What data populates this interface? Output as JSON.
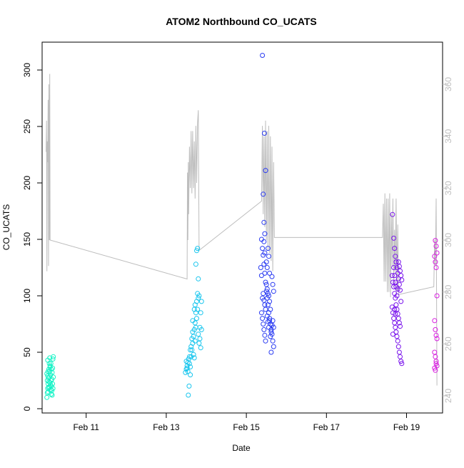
{
  "chart_data": {
    "type": "scatter",
    "title": "ATOM2 Northbound CO_UCATS",
    "xlabel": "Date",
    "ylabel": "CO_UCATS",
    "x_unit": "day of February",
    "xlim": [
      9.9,
      19.9
    ],
    "ylim": [
      0,
      320
    ],
    "y2lim": [
      240,
      368
    ],
    "x_ticks": [
      {
        "value": 11,
        "label": "Feb 11"
      },
      {
        "value": 13,
        "label": "Feb 13"
      },
      {
        "value": 15,
        "label": "Feb 15"
      },
      {
        "value": 17,
        "label": "Feb 17"
      },
      {
        "value": 19,
        "label": "Feb 19"
      }
    ],
    "y_ticks": [
      0,
      50,
      100,
      150,
      200,
      250,
      300
    ],
    "y2_ticks": [
      240,
      260,
      280,
      300,
      320,
      340,
      360
    ],
    "grid": false,
    "legend": "none",
    "colors": {
      "altitude_line": "#bdbdbd",
      "axis": "#000000",
      "secondary_axis": "#bdbdbd",
      "flight1": "#14f3c6",
      "flight2": "#1ac6ee",
      "flight3": "#2b3cf2",
      "flight4": "#7a14ec",
      "flight5": "#d81ee0"
    },
    "series": [
      {
        "color": "#14f3c6",
        "points": [
          [
            10.02,
            10
          ],
          [
            10.03,
            14
          ],
          [
            10.04,
            18
          ],
          [
            10.05,
            22
          ],
          [
            10.06,
            27
          ],
          [
            10.02,
            31
          ],
          [
            10.07,
            35
          ],
          [
            10.08,
            40
          ],
          [
            10.04,
            43
          ],
          [
            10.09,
            45
          ],
          [
            10.1,
            38
          ],
          [
            10.11,
            30
          ],
          [
            10.12,
            25
          ],
          [
            10.13,
            20
          ],
          [
            10.14,
            16
          ],
          [
            10.15,
            12
          ],
          [
            10.05,
            15
          ],
          [
            10.06,
            19
          ],
          [
            10.07,
            24
          ],
          [
            10.08,
            28
          ],
          [
            10.09,
            33
          ],
          [
            10.1,
            37
          ],
          [
            10.11,
            21
          ],
          [
            10.12,
            17
          ],
          [
            10.13,
            13
          ],
          [
            10.14,
            26
          ],
          [
            10.15,
            32
          ],
          [
            10.16,
            36
          ],
          [
            10.17,
            44
          ],
          [
            10.18,
            46
          ],
          [
            10.03,
            25
          ],
          [
            10.04,
            29
          ],
          [
            10.05,
            33
          ],
          [
            10.09,
            19
          ],
          [
            10.1,
            23
          ],
          [
            10.12,
            40
          ],
          [
            10.13,
            35
          ],
          [
            10.16,
            22
          ],
          [
            10.17,
            18
          ],
          [
            10.18,
            28
          ]
        ]
      },
      {
        "color": "#1ac6ee",
        "points": [
          [
            13.48,
            32
          ],
          [
            13.5,
            35
          ],
          [
            13.52,
            38
          ],
          [
            13.54,
            41
          ],
          [
            13.56,
            44
          ],
          [
            13.58,
            40
          ],
          [
            13.6,
            37
          ],
          [
            13.62,
            46
          ],
          [
            13.64,
            52
          ],
          [
            13.66,
            58
          ],
          [
            13.68,
            64
          ],
          [
            13.7,
            70
          ],
          [
            13.72,
            76
          ],
          [
            13.74,
            85
          ],
          [
            13.76,
            95
          ],
          [
            13.78,
            102
          ],
          [
            13.8,
            115
          ],
          [
            13.74,
            128
          ],
          [
            13.76,
            140
          ],
          [
            13.78,
            142
          ],
          [
            13.55,
            12
          ],
          [
            13.57,
            20
          ],
          [
            13.6,
            30
          ],
          [
            13.62,
            55
          ],
          [
            13.64,
            62
          ],
          [
            13.66,
            68
          ],
          [
            13.68,
            48
          ],
          [
            13.7,
            45
          ],
          [
            13.72,
            60
          ],
          [
            13.74,
            72
          ],
          [
            13.76,
            80
          ],
          [
            13.78,
            88
          ],
          [
            13.8,
            66
          ],
          [
            13.82,
            58
          ],
          [
            13.84,
            72
          ],
          [
            13.86,
            85
          ],
          [
            13.88,
            95
          ],
          [
            13.84,
            62
          ],
          [
            13.86,
            54
          ],
          [
            13.88,
            70
          ],
          [
            13.5,
            42
          ],
          [
            13.52,
            36
          ],
          [
            13.54,
            33
          ],
          [
            13.58,
            46
          ],
          [
            13.6,
            52
          ],
          [
            13.7,
            88
          ],
          [
            13.72,
            92
          ],
          [
            13.8,
            98
          ],
          [
            13.82,
            100
          ],
          [
            13.66,
            78
          ]
        ]
      },
      {
        "color": "#2b3cf2",
        "points": [
          [
            15.4,
            313
          ],
          [
            15.45,
            244
          ],
          [
            15.48,
            211
          ],
          [
            15.42,
            190
          ],
          [
            15.44,
            165
          ],
          [
            15.46,
            155
          ],
          [
            15.38,
            150
          ],
          [
            15.4,
            142
          ],
          [
            15.42,
            136
          ],
          [
            15.44,
            128
          ],
          [
            15.46,
            120
          ],
          [
            15.48,
            112
          ],
          [
            15.5,
            104
          ],
          [
            15.52,
            98
          ],
          [
            15.54,
            92
          ],
          [
            15.56,
            85
          ],
          [
            15.58,
            80
          ],
          [
            15.6,
            75
          ],
          [
            15.62,
            70
          ],
          [
            15.64,
            66
          ],
          [
            15.66,
            60
          ],
          [
            15.68,
            55
          ],
          [
            15.62,
            50
          ],
          [
            15.64,
            117
          ],
          [
            15.66,
            110
          ],
          [
            15.68,
            104
          ],
          [
            15.56,
            100
          ],
          [
            15.58,
            95
          ],
          [
            15.6,
            88
          ],
          [
            15.38,
            85
          ],
          [
            15.4,
            80
          ],
          [
            15.42,
            75
          ],
          [
            15.44,
            70
          ],
          [
            15.46,
            65
          ],
          [
            15.48,
            60
          ],
          [
            15.5,
            110
          ],
          [
            15.52,
            106
          ],
          [
            15.54,
            102
          ],
          [
            15.56,
            72
          ],
          [
            15.58,
            78
          ],
          [
            15.6,
            64
          ],
          [
            15.62,
            68
          ],
          [
            15.64,
            74
          ],
          [
            15.66,
            78
          ],
          [
            15.68,
            72
          ],
          [
            15.5,
            130
          ],
          [
            15.52,
            125
          ],
          [
            15.54,
            142
          ],
          [
            15.56,
            135
          ],
          [
            15.58,
            120
          ],
          [
            15.4,
            98
          ],
          [
            15.42,
            102
          ],
          [
            15.44,
            96
          ],
          [
            15.46,
            92
          ],
          [
            15.48,
            88
          ],
          [
            15.52,
            82
          ],
          [
            15.54,
            77
          ],
          [
            15.36,
            125
          ],
          [
            15.38,
            118
          ],
          [
            15.44,
            148
          ],
          [
            15.46,
            138
          ]
        ]
      },
      {
        "color": "#7a14ec",
        "points": [
          [
            18.65,
            172
          ],
          [
            18.68,
            151
          ],
          [
            18.7,
            142
          ],
          [
            18.72,
            135
          ],
          [
            18.74,
            130
          ],
          [
            18.76,
            125
          ],
          [
            18.78,
            120
          ],
          [
            18.8,
            115
          ],
          [
            18.82,
            110
          ],
          [
            18.84,
            105
          ],
          [
            18.86,
            95
          ],
          [
            18.64,
            90
          ],
          [
            18.66,
            85
          ],
          [
            18.68,
            80
          ],
          [
            18.7,
            76
          ],
          [
            18.72,
            72
          ],
          [
            18.74,
            68
          ],
          [
            18.76,
            64
          ],
          [
            18.78,
            60
          ],
          [
            18.8,
            55
          ],
          [
            18.82,
            50
          ],
          [
            18.84,
            46
          ],
          [
            18.86,
            42
          ],
          [
            18.88,
            40
          ],
          [
            18.64,
            118
          ],
          [
            18.66,
            112
          ],
          [
            18.68,
            108
          ],
          [
            18.7,
            102
          ],
          [
            18.72,
            98
          ],
          [
            18.74,
            92
          ],
          [
            18.76,
            88
          ],
          [
            18.78,
            84
          ],
          [
            18.8,
            80
          ],
          [
            18.82,
            76
          ],
          [
            18.84,
            73
          ],
          [
            18.68,
            125
          ],
          [
            18.7,
            118
          ],
          [
            18.72,
            112
          ],
          [
            18.74,
            108
          ],
          [
            18.76,
            100
          ],
          [
            18.8,
            130
          ],
          [
            18.82,
            126
          ],
          [
            18.84,
            122
          ],
          [
            18.86,
            118
          ],
          [
            18.88,
            114
          ],
          [
            18.66,
            66
          ],
          [
            18.7,
            88
          ],
          [
            18.72,
            84
          ],
          [
            18.74,
            130
          ],
          [
            18.78,
            106
          ]
        ]
      },
      {
        "color": "#d81ee0",
        "points": [
          [
            19.72,
            149
          ],
          [
            19.74,
            144
          ],
          [
            19.76,
            138
          ],
          [
            19.7,
            135
          ],
          [
            19.72,
            130
          ],
          [
            19.74,
            125
          ],
          [
            19.76,
            100
          ],
          [
            19.7,
            78
          ],
          [
            19.72,
            70
          ],
          [
            19.74,
            65
          ],
          [
            19.76,
            62
          ],
          [
            19.7,
            50
          ],
          [
            19.72,
            46
          ],
          [
            19.74,
            42
          ],
          [
            19.76,
            38
          ],
          [
            19.7,
            36
          ],
          [
            19.72,
            34
          ],
          [
            19.74,
            40
          ]
        ]
      }
    ],
    "altitude_line": [
      [
        10.0,
        334
      ],
      [
        10.01,
        346
      ],
      [
        10.02,
        288
      ],
      [
        10.03,
        338
      ],
      [
        10.04,
        330
      ],
      [
        10.05,
        354
      ],
      [
        10.06,
        290
      ],
      [
        10.07,
        360
      ],
      [
        10.08,
        300
      ],
      [
        10.09,
        364
      ],
      [
        10.1,
        300
      ],
      [
        13.52,
        285
      ],
      [
        13.53,
        326
      ],
      [
        13.54,
        300
      ],
      [
        13.55,
        330
      ],
      [
        13.56,
        310
      ],
      [
        13.58,
        336
      ],
      [
        13.6,
        320
      ],
      [
        13.62,
        342
      ],
      [
        13.64,
        318
      ],
      [
        13.66,
        342
      ],
      [
        13.68,
        320
      ],
      [
        13.7,
        338
      ],
      [
        13.72,
        316
      ],
      [
        13.74,
        344
      ],
      [
        13.76,
        322
      ],
      [
        13.78,
        345
      ],
      [
        13.8,
        350
      ],
      [
        13.82,
        296
      ],
      [
        15.38,
        315
      ],
      [
        15.4,
        344
      ],
      [
        15.42,
        310
      ],
      [
        15.44,
        340
      ],
      [
        15.46,
        305
      ],
      [
        15.48,
        346
      ],
      [
        15.5,
        300
      ],
      [
        15.52,
        342
      ],
      [
        15.54,
        296
      ],
      [
        15.56,
        344
      ],
      [
        15.58,
        295
      ],
      [
        15.6,
        340
      ],
      [
        15.62,
        292
      ],
      [
        15.64,
        336
      ],
      [
        15.66,
        288
      ],
      [
        15.68,
        330
      ],
      [
        15.7,
        301
      ],
      [
        18.4,
        301
      ],
      [
        18.42,
        314
      ],
      [
        18.44,
        284
      ],
      [
        18.46,
        318
      ],
      [
        18.48,
        284
      ],
      [
        18.5,
        316
      ],
      [
        18.52,
        280
      ],
      [
        18.54,
        316
      ],
      [
        18.56,
        280
      ],
      [
        18.58,
        318
      ],
      [
        18.6,
        278
      ],
      [
        18.62,
        310
      ],
      [
        18.64,
        290
      ],
      [
        18.66,
        316
      ],
      [
        18.68,
        282
      ],
      [
        18.7,
        304
      ],
      [
        18.72,
        288
      ],
      [
        18.74,
        316
      ],
      [
        18.76,
        280
      ],
      [
        18.78,
        306
      ],
      [
        18.8,
        279
      ],
      [
        19.68,
        282
      ],
      [
        19.7,
        300
      ],
      [
        19.72,
        290
      ],
      [
        19.74,
        316
      ],
      [
        19.76,
        244
      ]
    ]
  }
}
